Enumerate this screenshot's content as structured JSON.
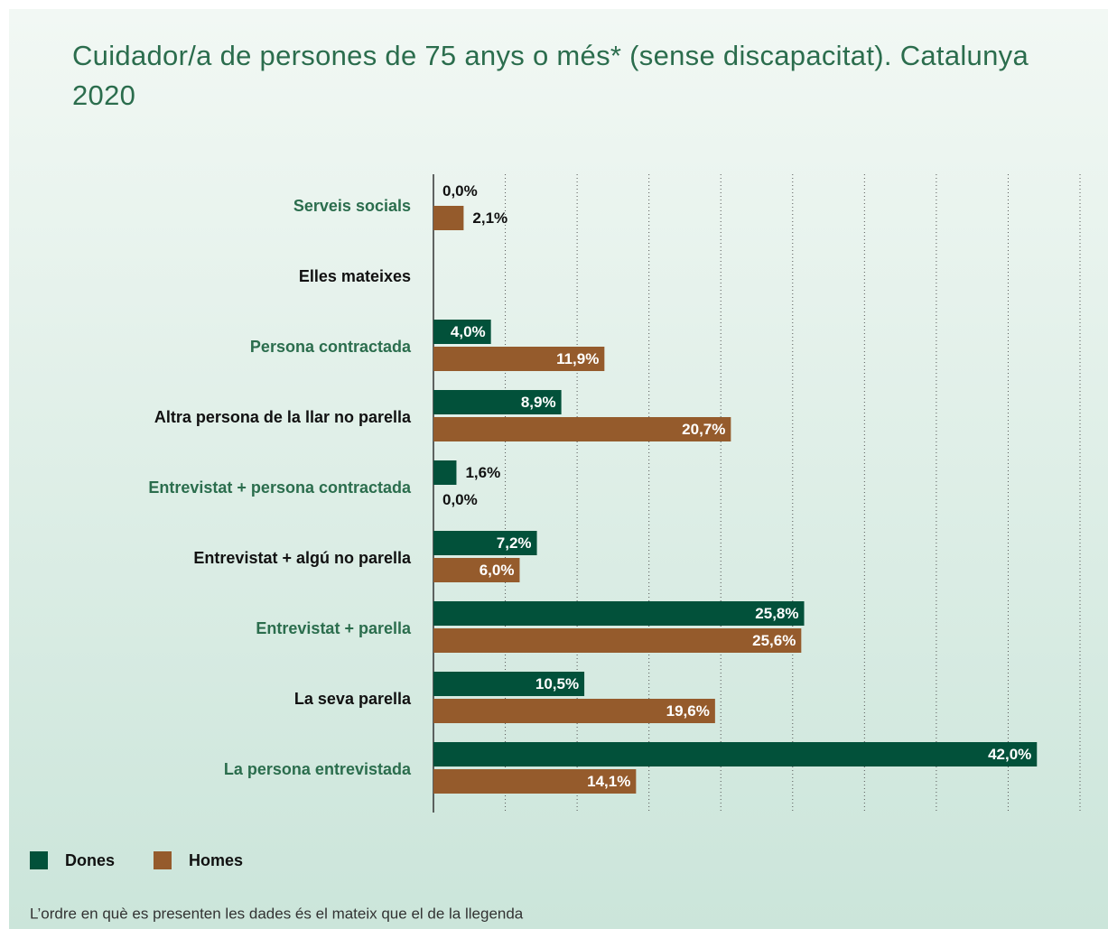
{
  "chart_data": {
    "type": "bar",
    "orientation": "horizontal",
    "title": "Cuidador/a de persones de 75 anys o més* (sense discapacitat). Catalunya 2020",
    "categories": [
      "Serveis socials",
      "Elles mateixes",
      "Persona contractada",
      "Altra persona de la llar no parella",
      "Entrevistat + persona contractada",
      "Entrevistat + algú no parella",
      "Entrevistat + parella",
      "La seva parella",
      "La persona entrevistada"
    ],
    "series": [
      {
        "name": "Dones",
        "color": "#02513a",
        "values": [
          0.0,
          null,
          4.0,
          8.9,
          1.6,
          7.2,
          25.8,
          10.5,
          42.0
        ],
        "value_labels": [
          "0,0%",
          null,
          "4,0%",
          "8,9%",
          "1,6%",
          "7,2%",
          "25,8%",
          "10,5%",
          "42,0%"
        ]
      },
      {
        "name": "Homes",
        "color": "#955b2c",
        "values": [
          2.1,
          null,
          11.9,
          20.7,
          0.0,
          6.0,
          25.6,
          19.6,
          14.1
        ],
        "value_labels": [
          "2,1%",
          null,
          "11,9%",
          "20,7%",
          "0,0%",
          "6,0%",
          "25,6%",
          "19,6%",
          "14,1%"
        ]
      }
    ],
    "xlim": [
      0,
      45
    ],
    "xticks": [
      0,
      5,
      10,
      15,
      20,
      25,
      30,
      35,
      40,
      45
    ],
    "grid": true,
    "legend": "bottom-left",
    "note": "L’ordre en què es presenten les dades és el mateix que el de la llegenda"
  }
}
